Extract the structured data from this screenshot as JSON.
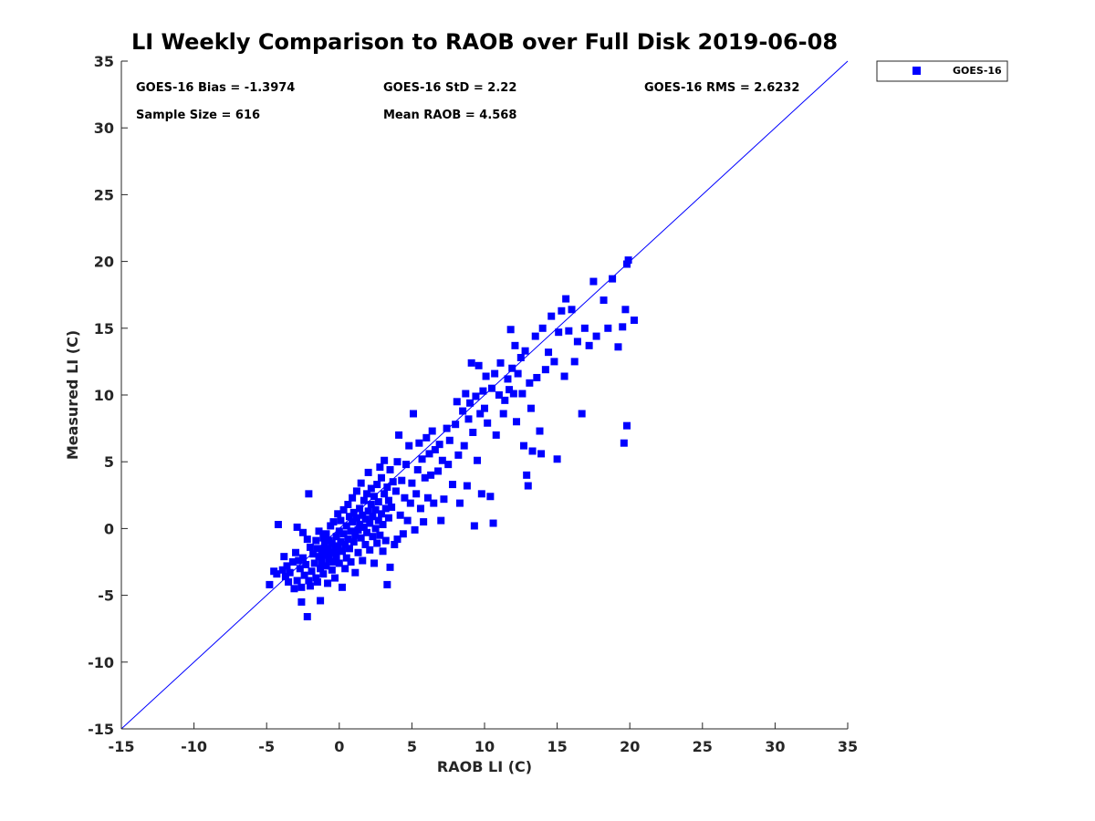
{
  "chart_data": {
    "type": "scatter",
    "title": "LI Weekly Comparison to RAOB over Full Disk 2019-06-08",
    "xlabel": "RAOB LI (C)",
    "ylabel": "Measured LI (C)",
    "xlim": [
      -15,
      35
    ],
    "ylim": [
      -15,
      35
    ],
    "xticks": [
      -15,
      -10,
      -5,
      0,
      5,
      10,
      15,
      20,
      25,
      30,
      35
    ],
    "yticks": [
      -15,
      -10,
      -5,
      0,
      5,
      10,
      15,
      20,
      25,
      30,
      35
    ],
    "grid": false,
    "legend_position": "outside-top-right",
    "reference_line": {
      "label": "1:1",
      "from": [
        -15,
        -15
      ],
      "to": [
        35,
        35
      ],
      "color": "#0000ff"
    },
    "stats": {
      "bias": "GOES-16 Bias = -1.3974",
      "std": "GOES-16 StD = 2.22",
      "rms": "GOES-16 RMS = 2.6232",
      "sample_size": "Sample Size = 616",
      "mean_raob": "Mean RAOB = 4.568"
    },
    "series": [
      {
        "name": "GOES-16",
        "color": "#0000ff",
        "marker": "square",
        "points": [
          [
            -4.8,
            -4.2
          ],
          [
            -4.5,
            -3.2
          ],
          [
            -4.3,
            -3.4
          ],
          [
            -4.2,
            0.3
          ],
          [
            -3.9,
            -3.1
          ],
          [
            -3.8,
            -2.1
          ],
          [
            -3.7,
            -3.6
          ],
          [
            -3.6,
            -2.8
          ],
          [
            -3.5,
            -4.0
          ],
          [
            -3.4,
            -3.3
          ],
          [
            -3.2,
            -2.5
          ],
          [
            -3.1,
            -4.5
          ],
          [
            -3.0,
            -1.8
          ],
          [
            -2.9,
            -3.9
          ],
          [
            -2.9,
            0.1
          ],
          [
            -2.8,
            -2.4
          ],
          [
            -2.7,
            -3.0
          ],
          [
            -2.6,
            -4.4
          ],
          [
            -2.6,
            -5.5
          ],
          [
            -2.5,
            -0.3
          ],
          [
            -2.5,
            -2.2
          ],
          [
            -2.4,
            -3.5
          ],
          [
            -2.3,
            -2.7
          ],
          [
            -2.2,
            -0.8
          ],
          [
            -2.2,
            -6.6
          ],
          [
            -2.1,
            -3.9
          ],
          [
            -2.1,
            2.6
          ],
          [
            -2.0,
            -1.4
          ],
          [
            -2.0,
            -4.3
          ],
          [
            -1.9,
            -3.2
          ],
          [
            -1.8,
            -1.9
          ],
          [
            -1.7,
            -2.6
          ],
          [
            -1.6,
            -3.7
          ],
          [
            -1.6,
            -0.9
          ],
          [
            -1.5,
            -1.5
          ],
          [
            -1.5,
            -4.0
          ],
          [
            -1.4,
            -2.1
          ],
          [
            -1.4,
            -0.2
          ],
          [
            -1.3,
            -3.0
          ],
          [
            -1.3,
            -5.4
          ],
          [
            -1.2,
            -1.6
          ],
          [
            -1.2,
            -2.5
          ],
          [
            -1.1,
            -0.7
          ],
          [
            -1.1,
            -3.4
          ],
          [
            -1.0,
            -1.2
          ],
          [
            -1.0,
            -2.0
          ],
          [
            -0.9,
            -0.4
          ],
          [
            -0.9,
            -2.8
          ],
          [
            -0.8,
            -1.5
          ],
          [
            -0.8,
            -4.1
          ],
          [
            -0.7,
            -0.9
          ],
          [
            -0.7,
            -2.3
          ],
          [
            -0.6,
            0.2
          ],
          [
            -0.6,
            -1.8
          ],
          [
            -0.5,
            -3.1
          ],
          [
            -0.5,
            -1.1
          ],
          [
            -0.4,
            -2.5
          ],
          [
            -0.4,
            0.5
          ],
          [
            -0.3,
            -1.6
          ],
          [
            -0.3,
            -3.7
          ],
          [
            -0.2,
            -0.6
          ],
          [
            -0.2,
            -2.1
          ],
          [
            -0.1,
            -1.3
          ],
          [
            -0.1,
            1.1
          ],
          [
            0.0,
            -0.2
          ],
          [
            0.0,
            -2.6
          ],
          [
            0.1,
            -1.0
          ],
          [
            0.1,
            0.6
          ],
          [
            0.2,
            -1.7
          ],
          [
            0.2,
            -4.4
          ],
          [
            0.3,
            -0.4
          ],
          [
            0.3,
            1.4
          ],
          [
            0.4,
            -1.2
          ],
          [
            0.4,
            -3.0
          ],
          [
            0.5,
            0.2
          ],
          [
            0.5,
            -2.2
          ],
          [
            0.6,
            -0.8
          ],
          [
            0.6,
            1.8
          ],
          [
            0.7,
            -1.5
          ],
          [
            0.7,
            0.9
          ],
          [
            0.8,
            -0.2
          ],
          [
            0.8,
            -2.5
          ],
          [
            0.9,
            0.5
          ],
          [
            0.9,
            2.3
          ],
          [
            1.0,
            -1.0
          ],
          [
            1.0,
            1.2
          ],
          [
            1.1,
            -0.5
          ],
          [
            1.1,
            -3.3
          ],
          [
            1.2,
            0.8
          ],
          [
            1.2,
            2.8
          ],
          [
            1.3,
            -0.1
          ],
          [
            1.3,
            -1.8
          ],
          [
            1.4,
            1.5
          ],
          [
            1.4,
            0.3
          ],
          [
            1.5,
            -0.7
          ],
          [
            1.5,
            3.4
          ],
          [
            1.6,
            1.0
          ],
          [
            1.6,
            -2.4
          ],
          [
            1.7,
            0.1
          ],
          [
            1.7,
            2.1
          ],
          [
            1.8,
            -1.2
          ],
          [
            1.8,
            0.7
          ],
          [
            1.9,
            2.6
          ],
          [
            1.9,
            -0.3
          ],
          [
            2.0,
            1.3
          ],
          [
            2.0,
            4.2
          ],
          [
            2.1,
            0.4
          ],
          [
            2.1,
            -1.6
          ],
          [
            2.2,
            1.8
          ],
          [
            2.2,
            3.0
          ],
          [
            2.3,
            -0.6
          ],
          [
            2.3,
            0.9
          ],
          [
            2.4,
            2.4
          ],
          [
            2.4,
            -2.6
          ],
          [
            2.5,
            1.4
          ],
          [
            2.5,
            0.0
          ],
          [
            2.6,
            3.3
          ],
          [
            2.6,
            -1.1
          ],
          [
            2.7,
            0.6
          ],
          [
            2.7,
            2.0
          ],
          [
            2.8,
            4.6
          ],
          [
            2.8,
            -0.5
          ],
          [
            2.9,
            1.1
          ],
          [
            2.9,
            3.8
          ],
          [
            3.0,
            -1.7
          ],
          [
            3.0,
            0.3
          ],
          [
            3.1,
            2.6
          ],
          [
            3.1,
            5.1
          ],
          [
            3.2,
            1.5
          ],
          [
            3.2,
            -0.9
          ],
          [
            3.3,
            3.1
          ],
          [
            3.3,
            -4.2
          ],
          [
            3.4,
            0.8
          ],
          [
            3.4,
            2.1
          ],
          [
            3.5,
            4.4
          ],
          [
            3.5,
            -2.9
          ],
          [
            3.6,
            1.6
          ],
          [
            3.7,
            3.5
          ],
          [
            3.8,
            -1.2
          ],
          [
            3.9,
            2.8
          ],
          [
            4.0,
            5.0
          ],
          [
            4.0,
            -0.8
          ],
          [
            4.1,
            7.0
          ],
          [
            4.2,
            1.0
          ],
          [
            4.3,
            3.6
          ],
          [
            4.4,
            -0.4
          ],
          [
            4.5,
            2.3
          ],
          [
            4.6,
            4.8
          ],
          [
            4.7,
            0.6
          ],
          [
            4.8,
            6.2
          ],
          [
            4.9,
            1.9
          ],
          [
            5.0,
            3.4
          ],
          [
            5.1,
            8.6
          ],
          [
            5.2,
            -0.1
          ],
          [
            5.3,
            2.6
          ],
          [
            5.4,
            4.4
          ],
          [
            5.5,
            6.4
          ],
          [
            5.6,
            1.5
          ],
          [
            5.7,
            5.2
          ],
          [
            5.8,
            0.5
          ],
          [
            5.9,
            3.8
          ],
          [
            6.0,
            6.8
          ],
          [
            6.1,
            2.3
          ],
          [
            6.2,
            5.6
          ],
          [
            6.3,
            4.0
          ],
          [
            6.4,
            7.3
          ],
          [
            6.5,
            1.9
          ],
          [
            6.6,
            5.9
          ],
          [
            6.8,
            4.3
          ],
          [
            6.9,
            6.3
          ],
          [
            7.0,
            0.6
          ],
          [
            7.1,
            5.1
          ],
          [
            7.2,
            2.2
          ],
          [
            7.4,
            7.5
          ],
          [
            7.5,
            4.8
          ],
          [
            7.6,
            6.6
          ],
          [
            7.8,
            3.3
          ],
          [
            8.0,
            7.8
          ],
          [
            8.1,
            9.5
          ],
          [
            8.2,
            5.5
          ],
          [
            8.3,
            1.9
          ],
          [
            8.5,
            8.8
          ],
          [
            8.6,
            6.2
          ],
          [
            8.7,
            10.1
          ],
          [
            8.8,
            3.2
          ],
          [
            8.9,
            8.2
          ],
          [
            9.0,
            9.4
          ],
          [
            9.1,
            12.4
          ],
          [
            9.2,
            7.2
          ],
          [
            9.3,
            0.2
          ],
          [
            9.4,
            9.9
          ],
          [
            9.5,
            5.1
          ],
          [
            9.6,
            12.2
          ],
          [
            9.7,
            8.6
          ],
          [
            9.8,
            2.6
          ],
          [
            9.9,
            10.3
          ],
          [
            10.0,
            9.0
          ],
          [
            10.1,
            11.4
          ],
          [
            10.2,
            7.9
          ],
          [
            10.4,
            2.4
          ],
          [
            10.5,
            10.5
          ],
          [
            10.6,
            0.4
          ],
          [
            10.7,
            11.6
          ],
          [
            10.8,
            7.0
          ],
          [
            11.0,
            10.0
          ],
          [
            11.1,
            12.4
          ],
          [
            11.3,
            8.6
          ],
          [
            11.4,
            9.6
          ],
          [
            11.6,
            11.2
          ],
          [
            11.7,
            10.4
          ],
          [
            11.8,
            14.9
          ],
          [
            11.9,
            12.0
          ],
          [
            12.0,
            10.1
          ],
          [
            12.1,
            13.7
          ],
          [
            12.2,
            8.0
          ],
          [
            12.3,
            11.6
          ],
          [
            12.5,
            12.8
          ],
          [
            12.6,
            10.1
          ],
          [
            12.7,
            6.2
          ],
          [
            12.8,
            13.3
          ],
          [
            12.9,
            4.0
          ],
          [
            13.0,
            3.2
          ],
          [
            13.1,
            10.9
          ],
          [
            13.2,
            9.0
          ],
          [
            13.3,
            5.8
          ],
          [
            13.5,
            14.4
          ],
          [
            13.6,
            11.3
          ],
          [
            13.8,
            7.3
          ],
          [
            13.9,
            5.6
          ],
          [
            14.0,
            15.0
          ],
          [
            14.2,
            11.9
          ],
          [
            14.4,
            13.2
          ],
          [
            14.6,
            15.9
          ],
          [
            14.8,
            12.5
          ],
          [
            15.0,
            5.2
          ],
          [
            15.1,
            14.7
          ],
          [
            15.3,
            16.3
          ],
          [
            15.5,
            11.4
          ],
          [
            15.6,
            17.2
          ],
          [
            15.8,
            14.8
          ],
          [
            16.0,
            16.4
          ],
          [
            16.2,
            12.5
          ],
          [
            16.4,
            14.0
          ],
          [
            16.7,
            8.6
          ],
          [
            16.9,
            15.0
          ],
          [
            17.2,
            13.7
          ],
          [
            17.5,
            18.5
          ],
          [
            17.7,
            14.4
          ],
          [
            18.2,
            17.1
          ],
          [
            18.5,
            15.0
          ],
          [
            18.8,
            18.7
          ],
          [
            19.2,
            13.6
          ],
          [
            19.5,
            15.1
          ],
          [
            19.6,
            6.4
          ],
          [
            19.7,
            16.4
          ],
          [
            19.8,
            19.8
          ],
          [
            19.8,
            7.7
          ],
          [
            19.9,
            20.1
          ],
          [
            20.3,
            15.6
          ]
        ]
      }
    ]
  }
}
